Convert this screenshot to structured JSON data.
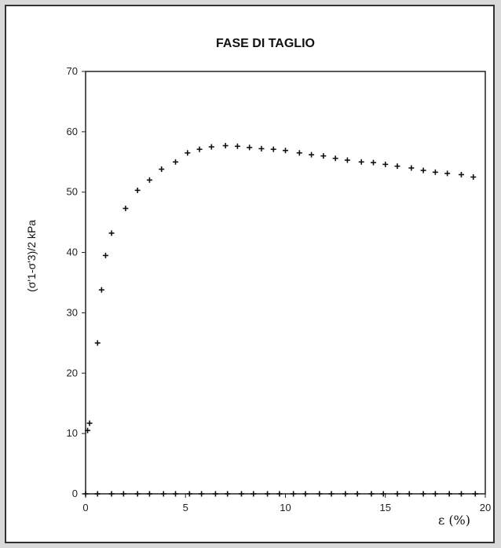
{
  "chart_data": {
    "type": "scatter",
    "title": "FASE DI TAGLIO",
    "xlabel": "ε (%)",
    "ylabel": "(σ'1-σ'3)/2 kPa",
    "xlim": [
      0,
      20
    ],
    "ylim": [
      0,
      70
    ],
    "x_ticks": [
      "0",
      "5",
      "10",
      "15",
      "20"
    ],
    "y_ticks": [
      "0",
      "10",
      "20",
      "30",
      "40",
      "50",
      "60",
      "70"
    ],
    "grid": false,
    "marker": "+",
    "series": [
      {
        "x": [
          0.1,
          0.2,
          0.6,
          0.8,
          1.0,
          1.3,
          2.0,
          2.6,
          3.2,
          3.8,
          4.5,
          5.1,
          5.7,
          6.3,
          7.0,
          7.6,
          8.2,
          8.8,
          9.4,
          10.0,
          10.7,
          11.3,
          11.9,
          12.5,
          13.1,
          13.8,
          14.4,
          15.0,
          15.6,
          16.3,
          16.9,
          17.5,
          18.1,
          18.8,
          19.4
        ],
        "y": [
          10.5,
          11.7,
          25,
          33.8,
          39.5,
          43.2,
          47.3,
          50.3,
          52,
          53.8,
          55,
          56.5,
          57.1,
          57.5,
          57.7,
          57.6,
          57.4,
          57.2,
          57.1,
          56.9,
          56.5,
          56.2,
          56,
          55.6,
          55.3,
          55,
          54.9,
          54.6,
          54.3,
          54,
          53.6,
          53.3,
          53.1,
          52.9,
          52.5
        ]
      },
      {
        "x": [
          0,
          0.6,
          1.3,
          1.9,
          2.6,
          3.2,
          3.9,
          4.5,
          5.2,
          5.8,
          6.5,
          7.1,
          7.8,
          8.4,
          9.1,
          9.7,
          10.4,
          11.0,
          11.7,
          12.3,
          13.0,
          13.6,
          14.3,
          14.9,
          15.6,
          16.2,
          16.9,
          17.5,
          18.2,
          18.8,
          19.5
        ],
        "y": [
          0,
          0,
          0,
          0,
          0,
          0,
          0,
          0,
          0,
          0,
          0,
          0,
          0,
          0,
          0,
          0,
          0,
          0,
          0,
          0,
          0,
          0,
          0,
          0,
          0,
          0,
          0,
          0,
          0,
          0,
          0
        ]
      }
    ]
  }
}
